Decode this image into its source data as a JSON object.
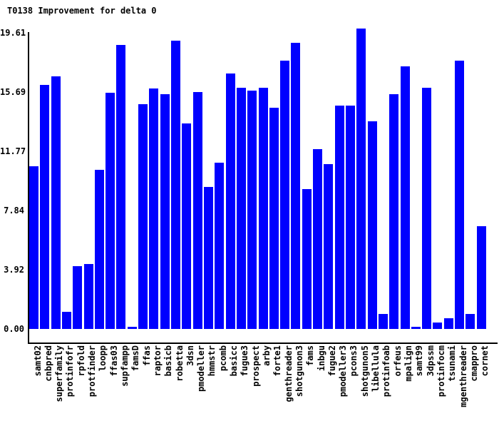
{
  "title": "T0138 Improvement for delta 0",
  "colors": {
    "bar": "#0000ff",
    "axis": "#000000",
    "text": "#000000",
    "background": "#ffffff"
  },
  "y_axis": {
    "tick_labels": [
      "19.61",
      "15.69",
      "11.77",
      "7.84",
      "3.92",
      "0.00"
    ],
    "tick_values": [
      19.61,
      15.69,
      11.77,
      7.84,
      3.92,
      0.0
    ]
  },
  "chart_data": {
    "type": "bar",
    "title": "T0138 Improvement for delta 0",
    "xlabel": "",
    "ylabel": "",
    "ylim": [
      0,
      19.61
    ],
    "y_ticks": [
      0.0,
      3.92,
      7.84,
      11.77,
      15.69,
      19.61
    ],
    "grid": false,
    "legend": false,
    "bar_color": "#0000ff",
    "categories": [
      "samt02",
      "cnbpred",
      "superfamily",
      "protinfofr",
      "rpfold",
      "protfinder",
      "loopp",
      "ffas03",
      "supfampp",
      "famsD",
      "ffas",
      "raptor",
      "basicb",
      "robetta",
      "3dsn",
      "pmodeller",
      "hmmstr",
      "pcomb",
      "basicc",
      "fugue3",
      "prospect",
      "arby",
      "forte1",
      "genthreader",
      "shotgunon3",
      "fams",
      "inbgu",
      "fugue2",
      "pmodeller3",
      "pcons3",
      "shotgunon5",
      "libellula",
      "protinfoab",
      "orfeus",
      "mpalign",
      "samt99",
      "3dpssm",
      "protinfocm",
      "tsunami",
      "mgenthreader",
      "cmappro",
      "cornet"
    ],
    "values": [
      10.77,
      16.16,
      16.73,
      1.13,
      4.16,
      4.3,
      10.54,
      15.64,
      18.81,
      0.14,
      14.88,
      15.92,
      15.55,
      19.09,
      13.61,
      15.69,
      9.42,
      11.0,
      16.9,
      15.96,
      15.8,
      15.99,
      14.65,
      17.77,
      18.95,
      9.26,
      11.91,
      10.92,
      14.79,
      14.79,
      19.89,
      13.75,
      0.99,
      15.55,
      17.39,
      0.14,
      15.96,
      0.43,
      0.71,
      17.77,
      0.99,
      6.81
    ]
  }
}
